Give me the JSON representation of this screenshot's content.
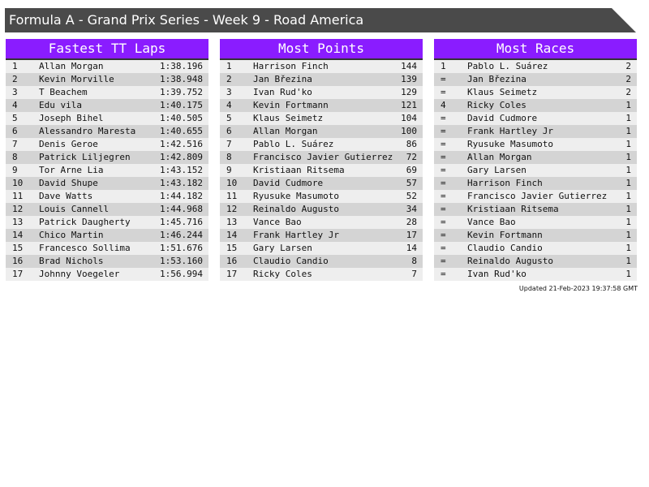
{
  "title": "Formula A - Grand Prix Series - Week 9 - Road America",
  "colors": {
    "header_bar": "#4a4a4a",
    "panel_header": "#8a1cff",
    "row_light": "#eeeeee",
    "row_dark": "#d4d4d4"
  },
  "panels": [
    {
      "title": "Fastest TT Laps",
      "rows": [
        [
          "1",
          "Allan Morgan",
          "1:38.196"
        ],
        [
          "2",
          "Kevin Morville",
          "1:38.948"
        ],
        [
          "3",
          "T Beachem",
          "1:39.752"
        ],
        [
          "4",
          "Edu vila",
          "1:40.175"
        ],
        [
          "5",
          "Joseph Bihel",
          "1:40.505"
        ],
        [
          "6",
          "Alessandro Maresta",
          "1:40.655"
        ],
        [
          "7",
          "Denis Geroe",
          "1:42.516"
        ],
        [
          "8",
          "Patrick Liljegren",
          "1:42.809"
        ],
        [
          "9",
          "Tor Arne Lia",
          "1:43.152"
        ],
        [
          "10",
          "David Shupe",
          "1:43.182"
        ],
        [
          "11",
          "Dave Watts",
          "1:44.182"
        ],
        [
          "12",
          "Louis Cannell",
          "1:44.968"
        ],
        [
          "13",
          "Patrick Daugherty",
          "1:45.716"
        ],
        [
          "14",
          "Chico Martin",
          "1:46.244"
        ],
        [
          "15",
          "Francesco Sollima",
          "1:51.676"
        ],
        [
          "16",
          "Brad Nichols",
          "1:53.160"
        ],
        [
          "17",
          "Johnny Voegeler",
          "1:56.994"
        ]
      ]
    },
    {
      "title": "Most Points",
      "rows": [
        [
          "1",
          "Harrison Finch",
          "144"
        ],
        [
          "2",
          "Jan Březina",
          "139"
        ],
        [
          "3",
          "Ivan Rud'ko",
          "129"
        ],
        [
          "4",
          "Kevin Fortmann",
          "121"
        ],
        [
          "5",
          "Klaus Seimetz",
          "104"
        ],
        [
          "6",
          "Allan Morgan",
          "100"
        ],
        [
          "7",
          "Pablo L. Suárez",
          "86"
        ],
        [
          "8",
          "Francisco Javier Gutierrez",
          "72"
        ],
        [
          "9",
          "Kristiaan Ritsema",
          "69"
        ],
        [
          "10",
          "David Cudmore",
          "57"
        ],
        [
          "11",
          "Ryusuke Masumoto",
          "52"
        ],
        [
          "12",
          "Reinaldo Augusto",
          "34"
        ],
        [
          "13",
          "Vance Bao",
          "28"
        ],
        [
          "14",
          "Frank Hartley Jr",
          "17"
        ],
        [
          "15",
          "Gary Larsen",
          "14"
        ],
        [
          "16",
          "Claudio Candio",
          "8"
        ],
        [
          "17",
          "Ricky Coles",
          "7"
        ]
      ]
    },
    {
      "title": "Most Races",
      "rows": [
        [
          "1",
          "Pablo L. Suárez",
          "2"
        ],
        [
          "=",
          "Jan Březina",
          "2"
        ],
        [
          "=",
          "Klaus Seimetz",
          "2"
        ],
        [
          "4",
          "Ricky Coles",
          "1"
        ],
        [
          "=",
          "David Cudmore",
          "1"
        ],
        [
          "=",
          "Frank Hartley Jr",
          "1"
        ],
        [
          "=",
          "Ryusuke Masumoto",
          "1"
        ],
        [
          "=",
          "Allan Morgan",
          "1"
        ],
        [
          "=",
          "Gary Larsen",
          "1"
        ],
        [
          "=",
          "Harrison Finch",
          "1"
        ],
        [
          "=",
          "Francisco Javier Gutierrez",
          "1"
        ],
        [
          "=",
          "Kristiaan Ritsema",
          "1"
        ],
        [
          "=",
          "Vance Bao",
          "1"
        ],
        [
          "=",
          "Kevin Fortmann",
          "1"
        ],
        [
          "=",
          "Claudio Candio",
          "1"
        ],
        [
          "=",
          "Reinaldo Augusto",
          "1"
        ],
        [
          "=",
          "Ivan Rud'ko",
          "1"
        ]
      ]
    }
  ],
  "updated": "Updated 21-Feb-2023 19:37:58 GMT"
}
